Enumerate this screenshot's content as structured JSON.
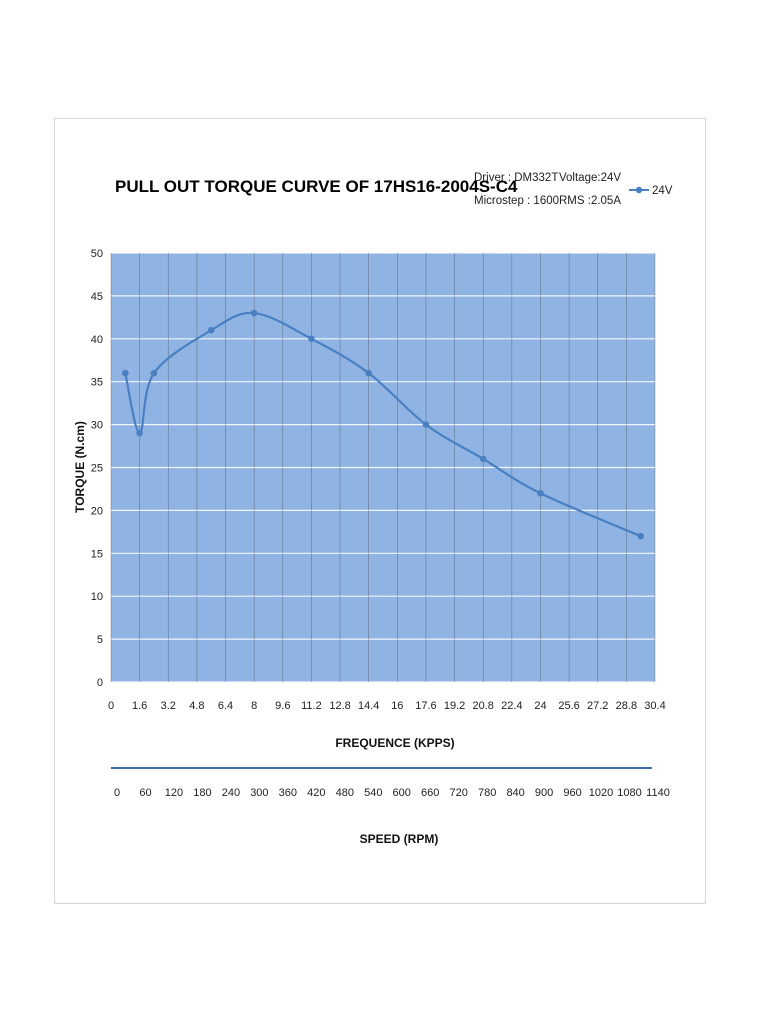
{
  "chart_data": {
    "type": "line",
    "title": "PULL OUT TORQUE CURVE OF 17HS16-2004S-C4",
    "info": {
      "driver": "Driver : DM332T",
      "voltage": "Voltage:24V",
      "microstep": "Microstep : 1600",
      "rms": "RMS :2.05A"
    },
    "xlabel": "FREQUENCE (KPPS)",
    "ylabel": "TORQUE (N.cm)",
    "x2label": "SPEED (RPM)",
    "xlim": [
      0,
      30.4
    ],
    "ylim": [
      0,
      50
    ],
    "x_ticks": [
      "0",
      "1.6",
      "3.2",
      "4.8",
      "6.4",
      "8",
      "9.6",
      "11.2",
      "12.8",
      "14.4",
      "16",
      "17.6",
      "19.2",
      "20.8",
      "22.4",
      "24",
      "25.6",
      "27.2",
      "28.8",
      "30.4"
    ],
    "y_ticks": [
      "0",
      "5",
      "10",
      "15",
      "20",
      "25",
      "30",
      "35",
      "40",
      "45",
      "50"
    ],
    "speed_ticks": [
      "0",
      "60",
      "120",
      "180",
      "240",
      "300",
      "360",
      "420",
      "480",
      "540",
      "600",
      "660",
      "720",
      "780",
      "840",
      "900",
      "960",
      "1020",
      "1080",
      "1140"
    ],
    "grid": true,
    "legend_position": "top-right",
    "plot_background": "#8fb4e3",
    "series": [
      {
        "name": "24V",
        "color": "#4a7fc1",
        "x": [
          0.8,
          1.6,
          2.4,
          5.6,
          8.0,
          11.2,
          14.4,
          17.6,
          20.8,
          24.0,
          29.6
        ],
        "y": [
          36,
          29,
          36,
          41,
          43,
          40,
          36,
          30,
          26,
          22,
          17
        ]
      }
    ]
  }
}
